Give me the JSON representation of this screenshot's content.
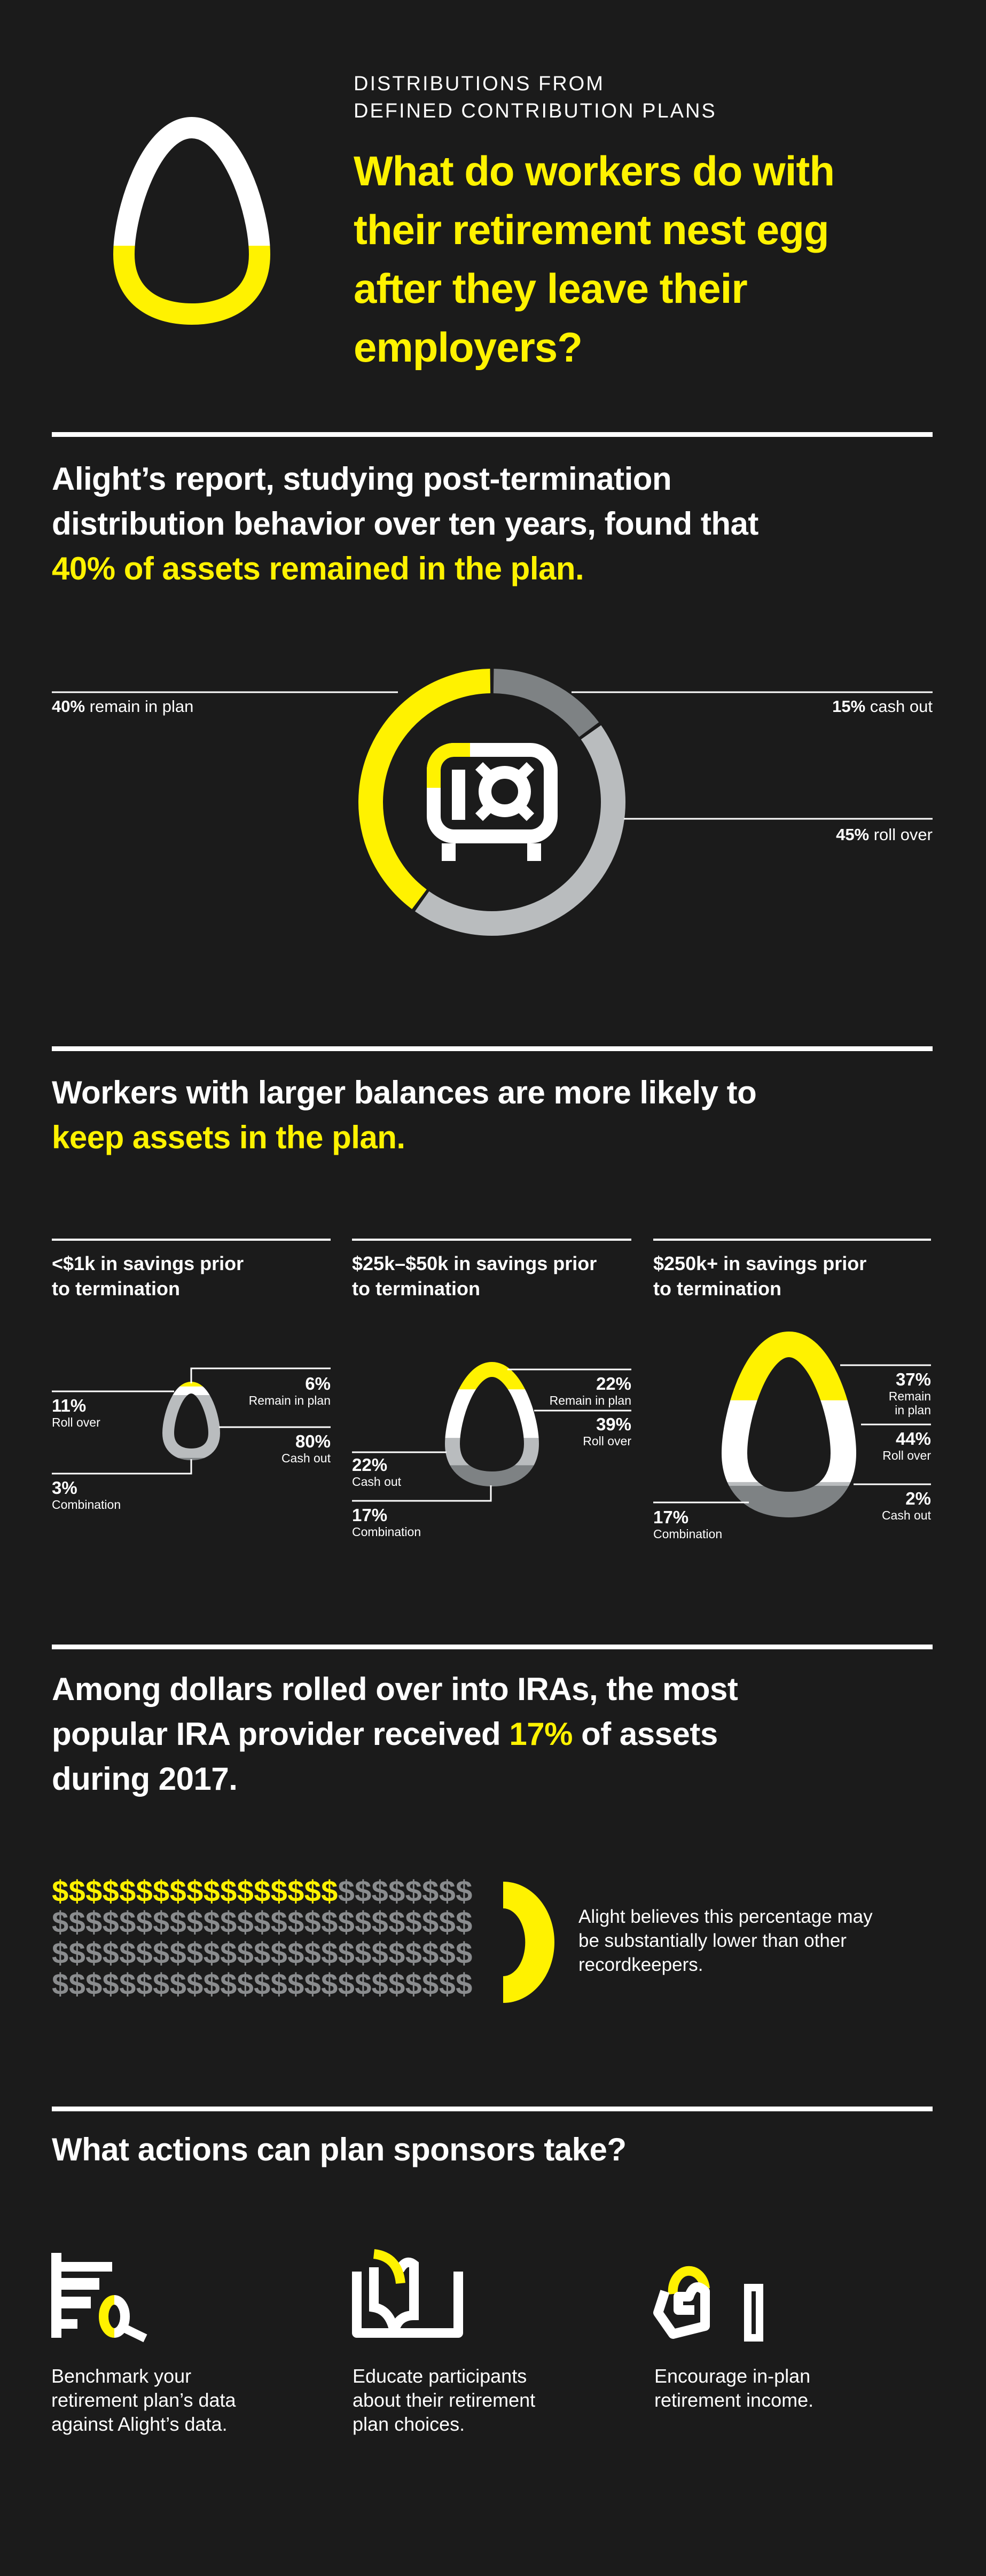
{
  "colors": {
    "background": "#1b1b1b",
    "yellow": "#fff200",
    "white": "#ffffff",
    "light_grey": "#b9bcbe",
    "dark_grey": "#7e8284"
  },
  "header": {
    "subtitle": [
      "DISTRIBUTIONS FROM",
      "DEFINED CONTRIBUTION PLANS"
    ],
    "headline": [
      "What do workers do with",
      "their retirement nest egg",
      "after they leave their",
      "employers?"
    ],
    "icon": "egg-icon"
  },
  "section1": {
    "heading_lines": [
      "Alight’s report, studying post-termination",
      "distribution behavior over ten years, found that"
    ],
    "heading_highlight": "40% of assets remained in the plan.",
    "center_icon": "safe-icon",
    "labels": {
      "remain": {
        "pct": "40%",
        "text": " remain in plan"
      },
      "cash": {
        "pct": "15%",
        "text": " cash out"
      },
      "roll": {
        "pct": "45%",
        "text": " roll over"
      }
    }
  },
  "section2": {
    "heading_line1": "Workers with larger balances are more likely to",
    "heading_highlight": "keep assets in the plan.",
    "columns": [
      {
        "title": [
          "<$1k in savings prior",
          "to termination"
        ],
        "segments": [
          {
            "pct": "6%",
            "label": "Remain in plan"
          },
          {
            "pct": "11%",
            "label": "Roll over"
          },
          {
            "pct": "80%",
            "label": "Cash out"
          },
          {
            "pct": "3%",
            "label": "Combination"
          }
        ]
      },
      {
        "title": [
          "$25k–$50k in savings prior",
          "to termination"
        ],
        "segments": [
          {
            "pct": "22%",
            "label": "Remain in plan"
          },
          {
            "pct": "39%",
            "label": "Roll over"
          },
          {
            "pct": "22%",
            "label": "Cash out"
          },
          {
            "pct": "17%",
            "label": "Combination"
          }
        ]
      },
      {
        "title": [
          "$250k+ in savings prior",
          "to termination"
        ],
        "segments": [
          {
            "pct": "37%",
            "label": "Remain",
            "label2": "in plan"
          },
          {
            "pct": "44%",
            "label": "Roll over"
          },
          {
            "pct": "2%",
            "label": "Cash out"
          },
          {
            "pct": "17%",
            "label": "Combination"
          }
        ]
      }
    ]
  },
  "section3": {
    "heading_line1": "Among dollars rolled over into IRAs, the most",
    "heading_line2_pre": "popular IRA provider received ",
    "heading_highlight": "17%",
    "heading_line2_post": " of assets",
    "heading_line3": "during 2017.",
    "dollar_symbol": "$",
    "note": [
      "Alight believes this percentage may",
      "be substantially lower than other",
      "recordkeepers."
    ]
  },
  "section4": {
    "heading": "What actions can plan sponsors take?",
    "actions": [
      {
        "icon": "benchmark-magnifier-icon",
        "lines": [
          "Benchmark your",
          "retirement plan’s data",
          "against Alight’s data."
        ]
      },
      {
        "icon": "open-book-icon",
        "lines": [
          "Educate participants",
          "about their retirement",
          "plan choices."
        ]
      },
      {
        "icon": "hand-coin-icon",
        "lines": [
          "Encourage in-plan",
          "retirement income."
        ]
      }
    ]
  },
  "chart_data": [
    {
      "type": "pie",
      "subtype": "donut",
      "categories": [
        "Remain in plan",
        "Cash out",
        "Roll over"
      ],
      "values": [
        40,
        15,
        45
      ],
      "colors": [
        "#fff200",
        "#7e8284",
        "#b9bcbe"
      ]
    },
    {
      "type": "bar",
      "subtype": "egg-stacked",
      "categories": [
        "<$1k",
        "$25k–$50k",
        "$250k+"
      ],
      "series": [
        {
          "name": "Remain in plan",
          "values": [
            6,
            22,
            37
          ]
        },
        {
          "name": "Roll over",
          "values": [
            11,
            39,
            44
          ]
        },
        {
          "name": "Cash out",
          "values": [
            80,
            22,
            2
          ]
        },
        {
          "name": "Combination",
          "values": [
            3,
            17,
            17
          ]
        }
      ]
    },
    {
      "type": "pictogram",
      "total": 100,
      "highlighted": 17,
      "per_row": 25
    }
  ]
}
